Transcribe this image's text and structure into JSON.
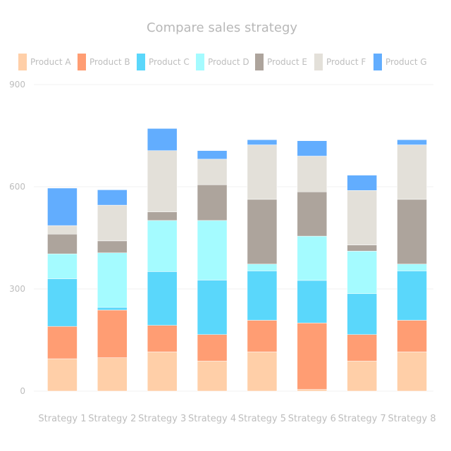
{
  "chart_data": {
    "type": "bar",
    "stacked": true,
    "title": "Compare sales strategy",
    "xlabel": "",
    "ylabel": "",
    "ylim": [
      0,
      900
    ],
    "yticks": [
      "0",
      "300",
      "600",
      "900"
    ],
    "grid": true,
    "legend_position": "top",
    "categories": [
      "Strategy 1",
      "Strategy 2",
      "Strategy 3",
      "Strategy 4",
      "Strategy 5",
      "Strategy 6",
      "Strategy 7",
      "Strategy 8"
    ],
    "series": [
      {
        "name": "Product A",
        "color": "#ffcfa8",
        "values": [
          95,
          98,
          115,
          88,
          115,
          5,
          88,
          115
        ]
      },
      {
        "name": "Product B",
        "color": "#ff9d73",
        "values": [
          95,
          140,
          78,
          78,
          93,
          195,
          78,
          93
        ]
      },
      {
        "name": "Product C",
        "color": "#5ad7fb",
        "values": [
          140,
          8,
          158,
          160,
          145,
          125,
          120,
          145
        ]
      },
      {
        "name": "Product D",
        "color": "#a4fbff",
        "values": [
          73,
          160,
          150,
          175,
          20,
          130,
          125,
          20
        ]
      },
      {
        "name": "Product E",
        "color": "#ada49c",
        "values": [
          58,
          35,
          25,
          105,
          190,
          130,
          18,
          190
        ]
      },
      {
        "name": "Product F",
        "color": "#e3e0d9",
        "values": [
          25,
          105,
          180,
          75,
          160,
          105,
          160,
          160
        ]
      },
      {
        "name": "Product G",
        "color": "#62adfe",
        "values": [
          110,
          45,
          65,
          25,
          15,
          45,
          45,
          15
        ]
      }
    ]
  }
}
